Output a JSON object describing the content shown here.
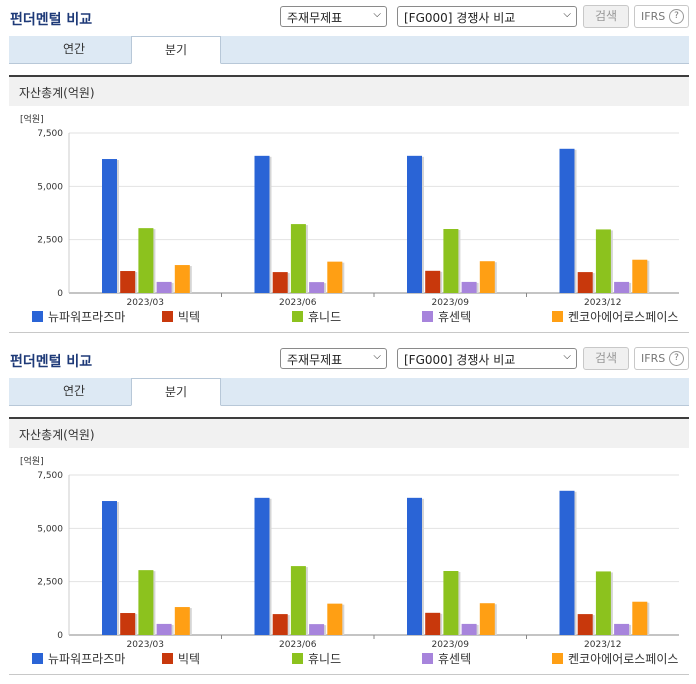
{
  "panel": {
    "title": "펀더멘털 비교",
    "select_item": "주재무제표",
    "select_compare": "[FG000] 경쟁사 비교",
    "search_label": "검색",
    "ifrs_label": "IFRS",
    "help_glyph": "?",
    "tabs": [
      {
        "label": "연간",
        "active": false
      },
      {
        "label": "분기",
        "active": true
      }
    ],
    "section_title": "자산총계(억원)"
  },
  "colors": {
    "title": "#1e3a78",
    "tabbar": "#dde9f4",
    "series": [
      "#2a64d6",
      "#c8380c",
      "#8cc21e",
      "#a784dc",
      "#ff9f14"
    ]
  },
  "chart_data": {
    "type": "bar",
    "ylabel": "[억원]",
    "categories": [
      "2023/03",
      "2023/06",
      "2023/09",
      "2023/12"
    ],
    "ylim": [
      0,
      7500
    ],
    "yticks": [
      0,
      2500,
      5000,
      7500
    ],
    "ytick_labels": [
      "0",
      "2,500",
      "5,000",
      "7,500"
    ],
    "grid": true,
    "legend_position": "bottom",
    "series": [
      {
        "name": "뉴파워프라즈마",
        "values": [
          6280,
          6430,
          6430,
          6760
        ]
      },
      {
        "name": "빅텍",
        "values": [
          1030,
          980,
          1040,
          980
        ]
      },
      {
        "name": "휴니드",
        "values": [
          3040,
          3230,
          3000,
          2980
        ]
      },
      {
        "name": "휴센텍",
        "values": [
          520,
          510,
          520,
          520
        ]
      },
      {
        "name": "켄코아에어로스페이스",
        "values": [
          1310,
          1470,
          1490,
          1560
        ]
      }
    ]
  }
}
